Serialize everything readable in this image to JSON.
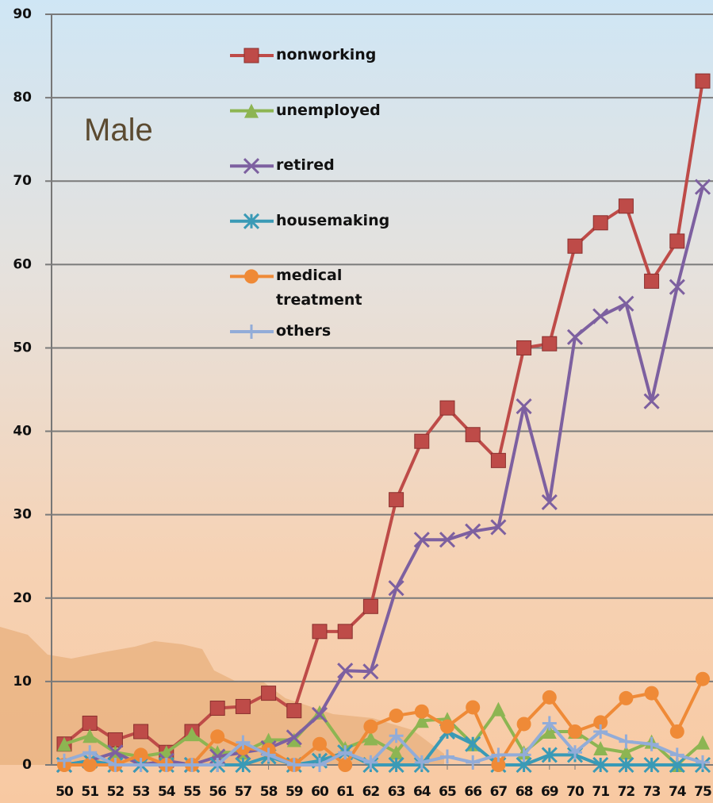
{
  "chart_data": {
    "type": "line",
    "annotation": "Male",
    "categories": [
      "50",
      "51",
      "52",
      "53",
      "54",
      "55",
      "56",
      "57",
      "58",
      "59",
      "60",
      "61",
      "62",
      "63",
      "64",
      "65",
      "66",
      "67",
      "68",
      "69",
      "70",
      "71",
      "72",
      "73",
      "74",
      "75"
    ],
    "ylim": [
      0,
      90
    ],
    "yticks": [
      0,
      10,
      20,
      30,
      40,
      50,
      60,
      70,
      80,
      90
    ],
    "grid": true,
    "series": [
      {
        "name": "nonworking",
        "color": "#be4b48",
        "marker": "square",
        "values": [
          2.5,
          5,
          3,
          4,
          1.5,
          4,
          6.8,
          7,
          8.6,
          6.5,
          16,
          16,
          19,
          31.8,
          38.8,
          42.8,
          39.6,
          36.5,
          50,
          50.5,
          62.2,
          65,
          67,
          58,
          62.8,
          82
        ]
      },
      {
        "name": "unemployed",
        "color": "#8db552",
        "marker": "triangle",
        "values": [
          2.5,
          3.5,
          1.5,
          1,
          1.5,
          3.7,
          1.5,
          1.5,
          3,
          3,
          6.3,
          2,
          3.2,
          1.5,
          5.3,
          5.5,
          2.5,
          6.7,
          1.5,
          4,
          4,
          2,
          1.5,
          2.8,
          0,
          2.7
        ]
      },
      {
        "name": "retired",
        "color": "#7d60a0",
        "marker": "x",
        "values": [
          0,
          0.5,
          1.5,
          0,
          0.5,
          0,
          1,
          1.5,
          2,
          3.3,
          6,
          11.3,
          11.2,
          21.2,
          27,
          27,
          28,
          28.5,
          43,
          31.5,
          51.3,
          53.8,
          55.3,
          43.6,
          57.3,
          69.3
        ]
      },
      {
        "name": "housemaking",
        "color": "#3a9ab6",
        "marker": "asterisk",
        "values": [
          0,
          0.5,
          0,
          0,
          0,
          0,
          0,
          0,
          1,
          0,
          0.5,
          1.5,
          0,
          0,
          0,
          4,
          2.5,
          0,
          0,
          1.2,
          1.2,
          0,
          0,
          0,
          0,
          0
        ]
      },
      {
        "name": "medical treatment",
        "color": "#ef8a37",
        "marker": "circle",
        "values": [
          0,
          0,
          0,
          1.2,
          0,
          0,
          3.4,
          2,
          1.8,
          0,
          2.5,
          0,
          4.6,
          5.9,
          6.4,
          4.6,
          6.9,
          0,
          4.9,
          8.1,
          4,
          5.1,
          8,
          8.6,
          4,
          10.3
        ]
      },
      {
        "name": "others",
        "color": "#92acd8",
        "marker": "plus",
        "values": [
          0.5,
          1.5,
          0,
          0,
          0,
          0,
          0,
          2.7,
          1.2,
          0,
          0,
          1.5,
          0.3,
          3.5,
          0.3,
          1,
          0.3,
          1.2,
          1.2,
          5,
          1.5,
          4,
          2.8,
          2.5,
          1.2,
          0.3
        ]
      }
    ]
  }
}
